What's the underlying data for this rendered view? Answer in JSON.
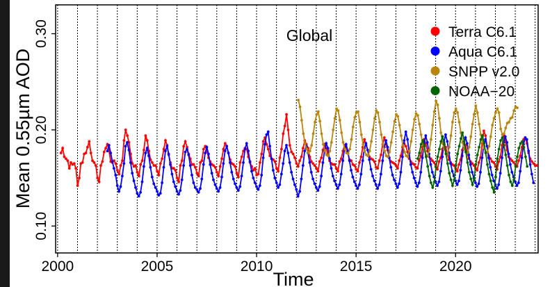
{
  "chart_data": {
    "type": "line",
    "title": "Global",
    "xlabel": "Time",
    "ylabel": "Mean 0.55µm AOD",
    "xlim": [
      1999.9,
      2024.15
    ],
    "ylim": [
      0.072,
      0.33
    ],
    "x_ticks": [
      2000,
      2005,
      2010,
      2015,
      2020
    ],
    "x_tick_labels": [
      "2000",
      "2005",
      "2010",
      "2015",
      "2020"
    ],
    "y_ticks": [
      0.1,
      0.2,
      0.3
    ],
    "y_tick_labels": [
      "0.10",
      "0.20",
      "0.30"
    ],
    "grid": "vertical dotted line at each January",
    "legend_position": "top-right",
    "series": [
      {
        "name": "Terra C6.1",
        "color": "#ff0000",
        "start": 2000.17,
        "values": [
          0.176,
          0.181,
          0.172,
          0.17,
          0.168,
          0.16,
          0.166,
          0.164,
          0.165,
          0.16,
          0.142,
          0.15,
          0.165,
          0.166,
          0.175,
          0.176,
          0.182,
          0.188,
          0.176,
          0.168,
          0.166,
          0.163,
          0.15,
          0.146,
          0.163,
          0.167,
          0.177,
          0.181,
          0.185,
          0.178,
          0.167,
          0.166,
          0.168,
          0.165,
          0.158,
          0.154,
          0.163,
          0.168,
          0.189,
          0.2,
          0.194,
          0.187,
          0.175,
          0.165,
          0.162,
          0.163,
          0.156,
          0.152,
          0.164,
          0.168,
          0.179,
          0.194,
          0.189,
          0.178,
          0.169,
          0.166,
          0.163,
          0.163,
          0.157,
          0.153,
          0.165,
          0.17,
          0.18,
          0.189,
          0.184,
          0.174,
          0.166,
          0.16,
          0.16,
          0.158,
          0.15,
          0.146,
          0.163,
          0.168,
          0.183,
          0.188,
          0.182,
          0.175,
          0.17,
          0.164,
          0.164,
          0.161,
          0.155,
          0.152,
          0.166,
          0.168,
          0.18,
          0.183,
          0.178,
          0.171,
          0.167,
          0.164,
          0.163,
          0.161,
          0.156,
          0.152,
          0.162,
          0.17,
          0.18,
          0.186,
          0.183,
          0.176,
          0.169,
          0.165,
          0.164,
          0.162,
          0.155,
          0.151,
          0.166,
          0.172,
          0.178,
          0.181,
          0.18,
          0.172,
          0.166,
          0.162,
          0.158,
          0.16,
          0.153,
          0.154,
          0.166,
          0.175,
          0.188,
          0.192,
          0.185,
          0.18,
          0.173,
          0.17,
          0.169,
          0.167,
          0.16,
          0.157,
          0.171,
          0.18,
          0.196,
          0.204,
          0.216,
          0.2,
          0.184,
          0.177,
          0.175,
          0.171,
          0.165,
          0.162,
          0.168,
          0.172,
          0.181,
          0.189,
          0.185,
          0.181,
          0.172,
          0.167,
          0.165,
          0.163,
          0.16,
          0.157,
          0.167,
          0.171,
          0.179,
          0.185,
          0.181,
          0.174,
          0.168,
          0.165,
          0.164,
          0.164,
          0.16,
          0.157,
          0.167,
          0.17,
          0.178,
          0.184,
          0.182,
          0.176,
          0.169,
          0.168,
          0.164,
          0.163,
          0.159,
          0.157,
          0.166,
          0.172,
          0.182,
          0.19,
          0.184,
          0.179,
          0.172,
          0.17,
          0.169,
          0.167,
          0.161,
          0.16,
          0.168,
          0.174,
          0.185,
          0.192,
          0.185,
          0.179,
          0.171,
          0.167,
          0.166,
          0.165,
          0.163,
          0.16,
          0.168,
          0.173,
          0.182,
          0.186,
          0.183,
          0.177,
          0.17,
          0.167,
          0.165,
          0.164,
          0.161,
          0.16,
          0.168,
          0.173,
          0.182,
          0.19,
          0.186,
          0.178,
          0.172,
          0.17,
          0.168,
          0.166,
          0.162,
          0.159,
          0.167,
          0.171,
          0.18,
          0.185,
          0.182,
          0.175,
          0.169,
          0.166,
          0.164,
          0.163,
          0.16,
          0.157,
          0.164,
          0.169,
          0.179,
          0.186,
          0.184,
          0.176,
          0.17,
          0.167,
          0.165,
          0.163,
          0.16,
          0.158,
          0.166,
          0.171,
          0.186,
          0.199,
          0.194,
          0.183,
          0.173,
          0.17,
          0.167,
          0.166,
          0.162,
          0.159,
          0.167,
          0.172,
          0.184,
          0.194,
          0.188,
          0.179,
          0.172,
          0.17,
          0.168,
          0.166,
          0.164,
          0.162,
          0.168,
          0.173,
          0.182,
          0.19,
          0.192,
          0.186,
          0.176,
          0.17,
          0.167,
          0.165,
          0.163,
          0.163
        ]
      },
      {
        "name": "Aqua C6.1",
        "color": "#0000ff",
        "start": 2002.5,
        "values": [
          0.178,
          0.184,
          0.176,
          0.167,
          0.16,
          0.153,
          0.142,
          0.136,
          0.141,
          0.152,
          0.165,
          0.183,
          0.187,
          0.179,
          0.166,
          0.155,
          0.147,
          0.14,
          0.134,
          0.131,
          0.135,
          0.146,
          0.162,
          0.176,
          0.181,
          0.173,
          0.161,
          0.151,
          0.144,
          0.14,
          0.136,
          0.132,
          0.134,
          0.145,
          0.161,
          0.178,
          0.183,
          0.175,
          0.164,
          0.154,
          0.146,
          0.141,
          0.136,
          0.133,
          0.137,
          0.148,
          0.163,
          0.177,
          0.18,
          0.174,
          0.163,
          0.153,
          0.145,
          0.14,
          0.138,
          0.135,
          0.139,
          0.149,
          0.164,
          0.176,
          0.182,
          0.175,
          0.164,
          0.155,
          0.148,
          0.143,
          0.139,
          0.136,
          0.14,
          0.151,
          0.165,
          0.178,
          0.183,
          0.176,
          0.166,
          0.156,
          0.149,
          0.144,
          0.14,
          0.137,
          0.141,
          0.152,
          0.166,
          0.18,
          0.186,
          0.178,
          0.167,
          0.157,
          0.15,
          0.145,
          0.141,
          0.138,
          0.142,
          0.153,
          0.171,
          0.185,
          0.195,
          0.198,
          0.183,
          0.17,
          0.158,
          0.15,
          0.145,
          0.14,
          0.143,
          0.154,
          0.165,
          0.178,
          0.184,
          0.176,
          0.166,
          0.156,
          0.149,
          0.143,
          0.138,
          0.131,
          0.136,
          0.149,
          0.163,
          0.178,
          0.183,
          0.176,
          0.166,
          0.156,
          0.149,
          0.144,
          0.14,
          0.137,
          0.141,
          0.152,
          0.166,
          0.178,
          0.186,
          0.181,
          0.17,
          0.16,
          0.152,
          0.147,
          0.143,
          0.139,
          0.143,
          0.154,
          0.168,
          0.18,
          0.185,
          0.178,
          0.168,
          0.158,
          0.151,
          0.146,
          0.142,
          0.139,
          0.143,
          0.154,
          0.168,
          0.181,
          0.186,
          0.179,
          0.169,
          0.159,
          0.152,
          0.147,
          0.143,
          0.139,
          0.143,
          0.154,
          0.168,
          0.182,
          0.189,
          0.182,
          0.171,
          0.161,
          0.153,
          0.148,
          0.144,
          0.14,
          0.144,
          0.156,
          0.172,
          0.189,
          0.198,
          0.19,
          0.176,
          0.164,
          0.156,
          0.15,
          0.145,
          0.141,
          0.145,
          0.156,
          0.171,
          0.185,
          0.194,
          0.187,
          0.175,
          0.164,
          0.156,
          0.151,
          0.146,
          0.142,
          0.146,
          0.157,
          0.172,
          0.187,
          0.195,
          0.188,
          0.176,
          0.165,
          0.157,
          0.152,
          0.147,
          0.143,
          0.147,
          0.158,
          0.173,
          0.186,
          0.192,
          0.186,
          0.174,
          0.164,
          0.156,
          0.15,
          0.145,
          0.141,
          0.144,
          0.156,
          0.171,
          0.184,
          0.19,
          0.183,
          0.171,
          0.161,
          0.153,
          0.147,
          0.143,
          0.139,
          0.143,
          0.155,
          0.171,
          0.187,
          0.193,
          0.187,
          0.175,
          0.164,
          0.156,
          0.151,
          0.146,
          0.142,
          0.145,
          0.157,
          0.171,
          0.185,
          0.192,
          0.19,
          0.178,
          0.164,
          0.154,
          0.145
        ]
      },
      {
        "name": "SNPP v2.0",
        "color": "#b8860b",
        "start": 2012.1,
        "values": [
          0.231,
          0.224,
          0.21,
          0.196,
          0.186,
          0.18,
          0.176,
          0.178,
          0.184,
          0.196,
          0.208,
          0.216,
          0.219,
          0.209,
          0.196,
          0.185,
          0.178,
          0.174,
          0.173,
          0.178,
          0.187,
          0.2,
          0.212,
          0.222,
          0.22,
          0.21,
          0.197,
          0.187,
          0.18,
          0.176,
          0.175,
          0.18,
          0.19,
          0.203,
          0.213,
          0.218,
          0.219,
          0.208,
          0.195,
          0.185,
          0.178,
          0.174,
          0.173,
          0.178,
          0.188,
          0.2,
          0.212,
          0.22,
          0.218,
          0.208,
          0.195,
          0.185,
          0.178,
          0.173,
          0.172,
          0.177,
          0.187,
          0.198,
          0.209,
          0.216,
          0.214,
          0.205,
          0.194,
          0.184,
          0.177,
          0.173,
          0.172,
          0.178,
          0.188,
          0.2,
          0.211,
          0.217,
          0.215,
          0.206,
          0.195,
          0.185,
          0.178,
          0.174,
          0.173,
          0.179,
          0.19,
          0.205,
          0.219,
          0.23,
          0.226,
          0.212,
          0.197,
          0.186,
          0.18,
          0.176,
          0.175,
          0.182,
          0.194,
          0.208,
          0.218,
          0.222,
          0.218,
          0.208,
          0.197,
          0.187,
          0.18,
          0.177,
          0.176,
          0.182,
          0.193,
          0.206,
          0.216,
          0.225,
          0.218,
          0.206,
          0.195,
          0.187,
          0.181,
          0.177,
          0.177,
          0.183,
          0.193,
          0.205,
          0.212,
          0.218,
          0.222,
          0.218,
          0.201,
          0.195,
          0.196,
          0.202,
          0.207,
          0.208,
          0.212,
          0.213,
          0.22,
          0.224,
          0.223
        ]
      },
      {
        "name": "NOAA−20",
        "color": "#006400",
        "start": 2018.1,
        "values": [
          0.17,
          0.176,
          0.185,
          0.189,
          0.183,
          0.172,
          0.162,
          0.152,
          0.145,
          0.14,
          0.146,
          0.161,
          0.172,
          0.18,
          0.188,
          0.193,
          0.185,
          0.175,
          0.165,
          0.155,
          0.148,
          0.142,
          0.148,
          0.163,
          0.175,
          0.183,
          0.191,
          0.197,
          0.188,
          0.177,
          0.166,
          0.156,
          0.149,
          0.143,
          0.149,
          0.164,
          0.174,
          0.182,
          0.19,
          0.194,
          0.186,
          0.176,
          0.164,
          0.154,
          0.147,
          0.14,
          0.135,
          0.151,
          0.17,
          0.18,
          0.189,
          0.192,
          0.184,
          0.174,
          0.163,
          0.153,
          0.146,
          0.142,
          0.148,
          0.162,
          0.172,
          0.181,
          0.186,
          0.188,
          0.182,
          0.172,
          0.162
        ]
      }
    ]
  }
}
